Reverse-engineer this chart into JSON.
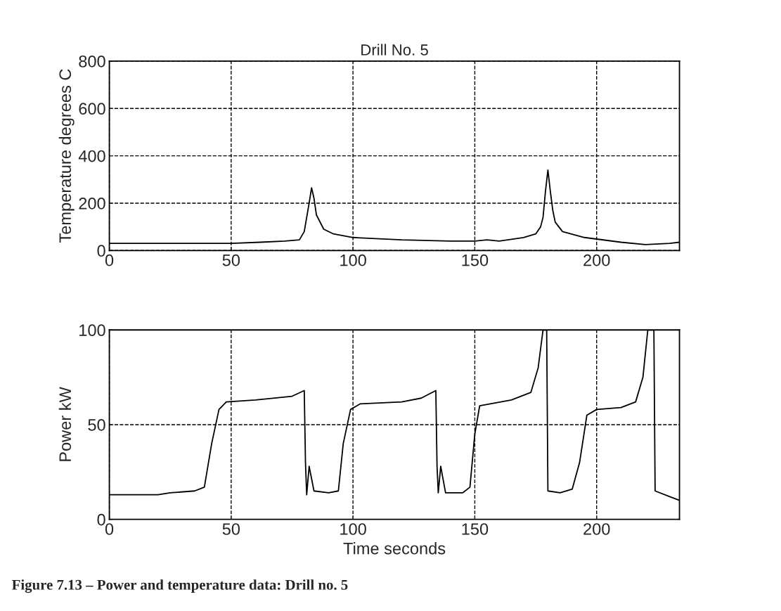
{
  "chart_data": [
    {
      "type": "line",
      "title": "Drill No. 5",
      "ylabel": "Temperature degrees C",
      "xlim": [
        0,
        234
      ],
      "xticks": [
        0,
        50,
        100,
        150,
        200
      ],
      "ylim": [
        0,
        800
      ],
      "yticks": [
        0,
        200,
        400,
        600,
        800
      ],
      "grid": true,
      "line_style": "solid",
      "series": [
        {
          "color": "#000000",
          "x": [
            0,
            30,
            50,
            62,
            72,
            78,
            80,
            82,
            83,
            84,
            85,
            88,
            92,
            100,
            120,
            140,
            150,
            155,
            160,
            170,
            175,
            177,
            178,
            179,
            180,
            181,
            182,
            183,
            186,
            195,
            210,
            220,
            230,
            234
          ],
          "values": [
            30,
            30,
            30,
            35,
            40,
            45,
            80,
            200,
            265,
            220,
            150,
            90,
            70,
            55,
            45,
            40,
            40,
            45,
            40,
            55,
            70,
            100,
            140,
            250,
            340,
            250,
            170,
            120,
            80,
            55,
            35,
            25,
            30,
            35
          ]
        }
      ]
    },
    {
      "type": "line",
      "xlabel": "Time seconds",
      "ylabel": "Power kW",
      "xlim": [
        0,
        234
      ],
      "xticks": [
        0,
        50,
        100,
        150,
        200
      ],
      "ylim": [
        0,
        100
      ],
      "yticks": [
        0,
        50,
        100
      ],
      "grid": true,
      "line_style": "solid",
      "series": [
        {
          "color": "#000000",
          "x": [
            0,
            20,
            25,
            35,
            39,
            42,
            45,
            48,
            60,
            75,
            80,
            80.5,
            81,
            82,
            84,
            90,
            94,
            96,
            99,
            103,
            120,
            128,
            134,
            134.5,
            135,
            136,
            138,
            145,
            148,
            150,
            152,
            165,
            173,
            176,
            178,
            179.5,
            180,
            185,
            190,
            193,
            196,
            200,
            210,
            216,
            219,
            221,
            223.5,
            224,
            230,
            234
          ],
          "values": [
            13,
            13,
            14,
            15,
            17,
            40,
            58,
            62,
            63,
            65,
            68,
            30,
            13,
            28,
            15,
            14,
            15,
            40,
            58,
            61,
            62,
            64,
            68,
            28,
            14,
            28,
            14,
            14,
            17,
            45,
            60,
            63,
            67,
            80,
            100,
            100,
            15,
            14,
            16,
            30,
            55,
            58,
            59,
            62,
            75,
            100,
            100,
            15,
            12,
            10
          ]
        }
      ],
      "annotations": [
        "Figure 7.13 – Power and temperature data: Drill no. 5"
      ]
    }
  ]
}
